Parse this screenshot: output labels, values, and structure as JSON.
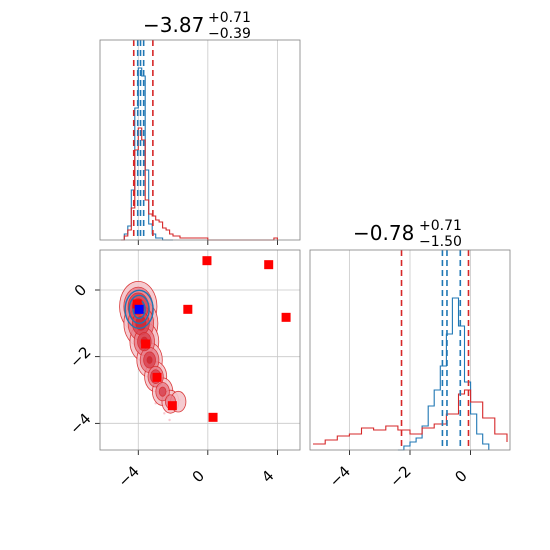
{
  "chart_data": [
    {
      "type": "histogram",
      "panel": "top-left",
      "title": {
        "value": "−3.87",
        "plus": "+0.71",
        "minus": "−0.39"
      },
      "xlim": [
        -6.2,
        5.3
      ],
      "grid": true,
      "x_ticks": [
        -4,
        0,
        4
      ],
      "vlines_red": [
        -4.26,
        -3.16
      ],
      "vlines_blue": [
        -4.03,
        -3.87,
        -3.69
      ],
      "series": [
        {
          "color": "#1f77b4",
          "x": [
            -5.0,
            -4.8,
            -4.6,
            -4.4,
            -4.2,
            -4.0,
            -3.8,
            -3.6,
            -3.4,
            -3.2,
            -3.0,
            -2.8,
            -2.6,
            -2.4,
            -2.0
          ],
          "y": [
            0.0,
            0.03,
            0.07,
            0.25,
            0.66,
            0.86,
            0.82,
            0.35,
            0.08,
            0.03,
            0.01,
            0.01,
            0.0,
            0.0,
            0.0
          ]
        },
        {
          "color": "#d62728",
          "x": [
            -5.0,
            -4.8,
            -4.6,
            -4.4,
            -4.2,
            -4.0,
            -3.8,
            -3.6,
            -3.4,
            -3.2,
            -3.0,
            -2.8,
            -2.6,
            -2.4,
            -2.2,
            -2.0,
            -1.6,
            -1.2,
            -0.8,
            0.0,
            3.8,
            4.0
          ],
          "y": [
            0.0,
            0.02,
            0.05,
            0.16,
            0.45,
            0.56,
            0.5,
            0.2,
            0.13,
            0.12,
            0.1,
            0.09,
            0.06,
            0.05,
            0.03,
            0.02,
            0.01,
            0.01,
            0.01,
            0.0,
            0.01,
            0.0
          ]
        }
      ]
    },
    {
      "type": "scatter",
      "panel": "bottom-left",
      "xlim": [
        -6.2,
        5.3
      ],
      "ylim": [
        -4.8,
        1.2
      ],
      "grid": true,
      "x_ticks": [
        -4,
        0,
        4
      ],
      "y_ticks": [
        0,
        -2,
        -4
      ],
      "red_points": [
        [
          -4.06,
          -0.42
        ],
        [
          -3.58,
          -1.62
        ],
        [
          -2.92,
          -2.62
        ],
        [
          -2.04,
          -3.47
        ],
        [
          -1.15,
          -0.58
        ],
        [
          -0.05,
          0.88
        ],
        [
          0.3,
          -3.82
        ],
        [
          3.5,
          0.76
        ],
        [
          4.5,
          -0.82
        ]
      ],
      "blue_point": [
        -3.95,
        -0.58
      ],
      "contour_color": "#d62728",
      "contour_blue": "#1f77b4"
    },
    {
      "type": "histogram",
      "panel": "bottom-right",
      "title": {
        "value": "−0.78",
        "plus": "+0.71",
        "minus": "−1.50"
      },
      "xlim": [
        -5.3,
        1.3
      ],
      "grid": true,
      "x_ticks": [
        -4,
        -2,
        0
      ],
      "vlines_red": [
        -2.28,
        -0.07
      ],
      "vlines_blue": [
        -0.93,
        -0.78,
        -0.34
      ],
      "series": [
        {
          "color": "#1f77b4",
          "x": [
            -2.4,
            -2.2,
            -2.0,
            -1.8,
            -1.6,
            -1.4,
            -1.2,
            -1.0,
            -0.8,
            -0.6,
            -0.4,
            -0.2,
            0.0,
            0.2,
            0.4,
            0.6
          ],
          "y": [
            0.0,
            0.02,
            0.04,
            0.06,
            0.12,
            0.22,
            0.3,
            0.42,
            0.58,
            0.76,
            0.62,
            0.34,
            0.18,
            0.08,
            0.03,
            0.0
          ]
        },
        {
          "color": "#d62728",
          "x": [
            -5.2,
            -4.8,
            -4.4,
            -4.0,
            -3.6,
            -3.2,
            -2.8,
            -2.4,
            -2.0,
            -1.6,
            -1.2,
            -0.8,
            -0.4,
            -0.2,
            0.0,
            0.4,
            0.8,
            1.2
          ],
          "y": [
            0.03,
            0.05,
            0.07,
            0.08,
            0.11,
            0.1,
            0.12,
            0.1,
            0.08,
            0.11,
            0.13,
            0.18,
            0.28,
            0.3,
            0.24,
            0.16,
            0.08,
            0.04
          ]
        }
      ]
    }
  ]
}
